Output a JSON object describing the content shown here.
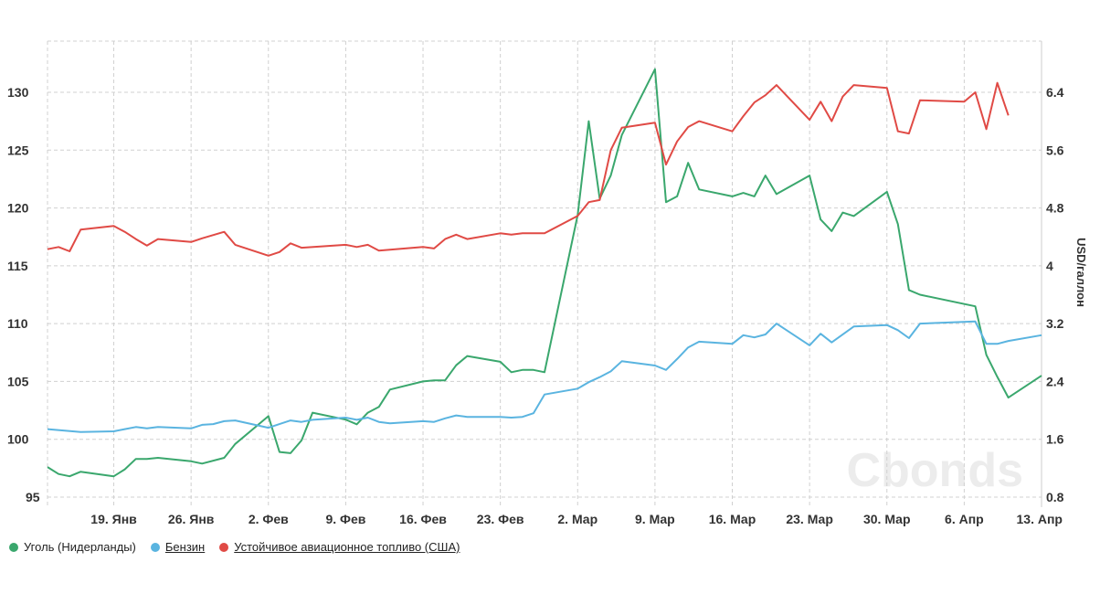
{
  "chart_data": {
    "type": "line",
    "x_unit": "days since 13 Jan",
    "x_ticks": [
      {
        "d": 6,
        "label": "19. Янв"
      },
      {
        "d": 13,
        "label": "26. Янв"
      },
      {
        "d": 20,
        "label": "2. Фев"
      },
      {
        "d": 27,
        "label": "9. Фев"
      },
      {
        "d": 34,
        "label": "16. Фев"
      },
      {
        "d": 41,
        "label": "23. Фев"
      },
      {
        "d": 48,
        "label": "2. Мар"
      },
      {
        "d": 55,
        "label": "9. Мар"
      },
      {
        "d": 62,
        "label": "16. Мар"
      },
      {
        "d": 69,
        "label": "23. Мар"
      },
      {
        "d": 76,
        "label": "30. Мар"
      },
      {
        "d": 83,
        "label": "6. Апр"
      },
      {
        "d": 90,
        "label": "13. Апр"
      }
    ],
    "xlim": [
      0,
      90
    ],
    "left_axis": {
      "label": "",
      "ticks": [
        "95",
        "100",
        "105",
        "110",
        "115",
        "120",
        "125",
        "130"
      ],
      "ylim": [
        95,
        130
      ]
    },
    "right_axis": {
      "label": "USD/галлон",
      "ticks": [
        "0.8",
        "1.6",
        "2.4",
        "3.2",
        "4",
        "4.8",
        "5.6",
        "6.4"
      ],
      "ylim": [
        0.8,
        6.4
      ]
    },
    "grid": true,
    "legend_position": "bottom-left",
    "watermark": "Cbonds",
    "series": [
      {
        "name": "Уголь (Нидерланды)",
        "color": "#3aa76d",
        "axis": "left",
        "underline": false,
        "x": [
          0,
          1,
          2,
          3,
          6,
          7,
          8,
          9,
          10,
          13,
          14,
          16,
          17,
          20,
          21,
          22,
          23,
          24,
          27,
          28,
          29,
          30,
          31,
          34,
          35,
          36,
          37,
          38,
          41,
          42,
          43,
          44,
          45,
          48,
          49,
          50,
          51,
          52,
          55,
          56,
          57,
          58,
          59,
          62,
          63,
          64,
          65,
          66,
          69,
          70,
          71,
          72,
          73,
          76,
          77,
          78,
          79,
          84,
          85,
          86,
          87,
          90
        ],
        "y": [
          97.6,
          97.0,
          96.8,
          97.2,
          96.8,
          97.4,
          98.3,
          98.3,
          98.4,
          98.1,
          97.9,
          98.4,
          99.6,
          102.0,
          98.9,
          98.8,
          99.9,
          102.3,
          101.7,
          101.3,
          102.3,
          102.8,
          104.3,
          105.0,
          105.1,
          105.1,
          106.4,
          107.2,
          106.7,
          105.8,
          106.0,
          106.0,
          105.8,
          119.4,
          127.5,
          120.8,
          122.8,
          126.3,
          132.0,
          120.5,
          121.0,
          123.9,
          121.6,
          121.0,
          121.3,
          121.0,
          122.8,
          121.2,
          122.8,
          119.0,
          118.0,
          119.6,
          119.3,
          121.4,
          118.6,
          112.9,
          112.5,
          111.5,
          107.3,
          105.4,
          103.6,
          105.5
        ]
      },
      {
        "name": "Бензин",
        "color": "#5ab4e0",
        "axis": "right",
        "underline": true,
        "x": [
          0,
          3,
          6,
          7,
          8,
          9,
          10,
          13,
          14,
          15,
          16,
          17,
          20,
          21,
          22,
          23,
          24,
          27,
          28,
          29,
          30,
          31,
          34,
          35,
          36,
          37,
          38,
          41,
          42,
          43,
          44,
          45,
          48,
          49,
          50,
          51,
          52,
          55,
          56,
          57,
          58,
          59,
          62,
          63,
          64,
          65,
          66,
          69,
          70,
          71,
          73,
          76,
          77,
          78,
          79,
          84,
          85,
          86,
          87,
          90
        ],
        "y": [
          1.74,
          1.7,
          1.71,
          1.74,
          1.77,
          1.75,
          1.77,
          1.75,
          1.8,
          1.81,
          1.85,
          1.86,
          1.76,
          1.81,
          1.86,
          1.84,
          1.87,
          1.9,
          1.87,
          1.9,
          1.84,
          1.82,
          1.85,
          1.84,
          1.89,
          1.93,
          1.91,
          1.91,
          1.9,
          1.91,
          1.96,
          2.22,
          2.3,
          2.39,
          2.46,
          2.54,
          2.68,
          2.62,
          2.56,
          2.71,
          2.87,
          2.95,
          2.92,
          3.04,
          3.01,
          3.05,
          3.2,
          2.9,
          3.06,
          2.94,
          3.16,
          3.18,
          3.11,
          3.0,
          3.2,
          3.23,
          2.92,
          2.92,
          2.96,
          3.04
        ]
      },
      {
        "name": "Устойчивое авиационное топливо (США)",
        "color": "#e04a45",
        "axis": "right",
        "underline": true,
        "x": [
          0,
          1,
          2,
          3,
          6,
          7,
          8,
          9,
          10,
          13,
          14,
          16,
          17,
          20,
          21,
          22,
          23,
          27,
          28,
          29,
          30,
          34,
          35,
          36,
          37,
          38,
          41,
          42,
          43,
          45,
          48,
          49,
          50,
          51,
          52,
          55,
          56,
          57,
          58,
          59,
          62,
          63,
          64,
          65,
          66,
          69,
          70,
          71,
          72,
          73,
          76,
          77,
          78,
          79,
          83,
          84,
          85,
          86,
          87
        ],
        "y": [
          4.23,
          4.26,
          4.2,
          4.5,
          4.55,
          4.47,
          4.37,
          4.28,
          4.37,
          4.33,
          4.38,
          4.47,
          4.29,
          4.14,
          4.19,
          4.31,
          4.25,
          4.29,
          4.26,
          4.29,
          4.21,
          4.26,
          4.24,
          4.37,
          4.43,
          4.37,
          4.45,
          4.43,
          4.45,
          4.45,
          4.69,
          4.88,
          4.91,
          5.6,
          5.91,
          5.98,
          5.4,
          5.72,
          5.92,
          6.0,
          5.86,
          6.07,
          6.26,
          6.36,
          6.5,
          6.02,
          6.27,
          6.0,
          6.34,
          6.5,
          6.46,
          5.86,
          5.83,
          6.29,
          6.27,
          6.4,
          5.89,
          6.53,
          6.08
        ]
      }
    ]
  }
}
